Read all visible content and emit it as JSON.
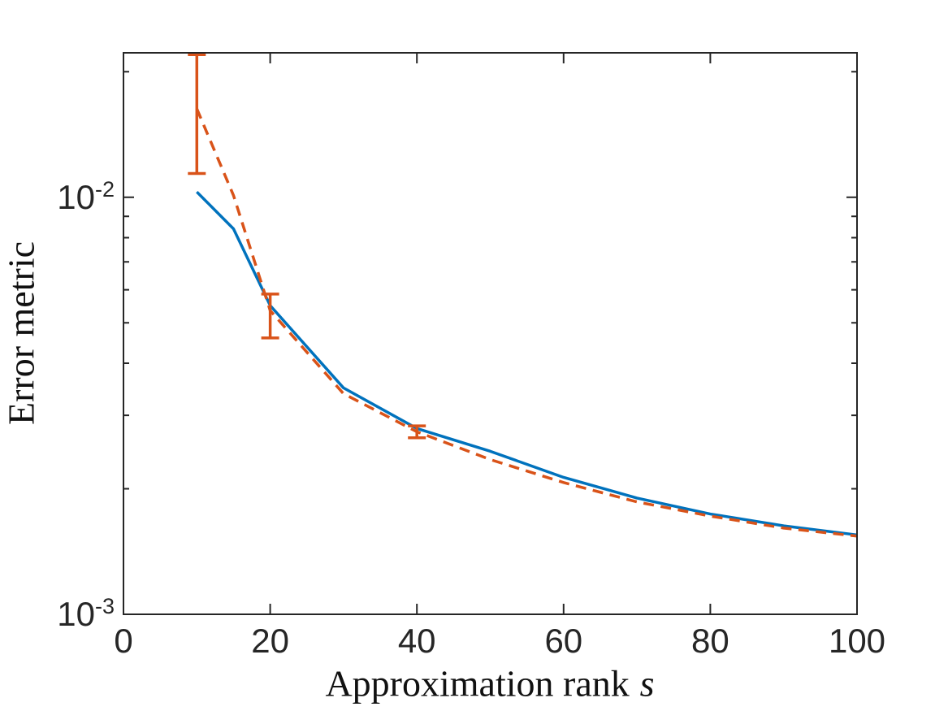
{
  "figure": {
    "background": "#ffffff",
    "axis_color": "#262626",
    "tick_label_color": "#262626",
    "axis_label_color": "#111111"
  },
  "chart_data": {
    "type": "line",
    "title": "",
    "xlabel": "Approximation rank s",
    "xlabel_text": "Approximation rank",
    "xlabel_variable": "s",
    "ylabel": "Error metric",
    "xscale": "linear",
    "yscale": "log",
    "xlim": [
      0,
      100
    ],
    "ylim": [
      0.001,
      0.0222
    ],
    "xticks": [
      0,
      20,
      40,
      60,
      80,
      100
    ],
    "yticks_major": [
      {
        "value": 0.01,
        "label_base": "10",
        "label_exponent": "-2"
      },
      {
        "value": 0.001,
        "label_base": "10",
        "label_exponent": "-3"
      }
    ],
    "yticks_minor": [
      0.02,
      0.009,
      0.008,
      0.007,
      0.006,
      0.005,
      0.004,
      0.003,
      0.002
    ],
    "grid": false,
    "legend": "none",
    "x": [
      10,
      15,
      20,
      30,
      40,
      50,
      60,
      70,
      80,
      90,
      100
    ],
    "series": [
      {
        "name": "solid-blue-curve",
        "color": "#0072BD",
        "line_style": "solid",
        "line_width": 3.5,
        "values": [
          0.0103,
          0.0084,
          0.0055,
          0.00349,
          0.00279,
          0.00246,
          0.00213,
          0.0019,
          0.00174,
          0.00163,
          0.00155
        ]
      },
      {
        "name": "dashed-orange-curve-with-errorbars",
        "color": "#D95319",
        "line_style": "dashed",
        "line_width": 3.5,
        "values": [
          0.0163,
          0.0101,
          0.00535,
          0.00338,
          0.00274,
          0.00235,
          0.00207,
          0.00186,
          0.00172,
          0.00161,
          0.00154
        ],
        "error_bars": [
          {
            "x": 10,
            "center": 0.0163,
            "lower": 0.0114,
            "upper": 0.0222,
            "upper_clipped": true
          },
          {
            "x": 20,
            "center": 0.00535,
            "lower": 0.0046,
            "upper": 0.00586,
            "upper_clipped": false
          },
          {
            "x": 40,
            "center": 0.00274,
            "lower": 0.00265,
            "upper": 0.00283,
            "upper_clipped": false
          }
        ]
      }
    ]
  }
}
